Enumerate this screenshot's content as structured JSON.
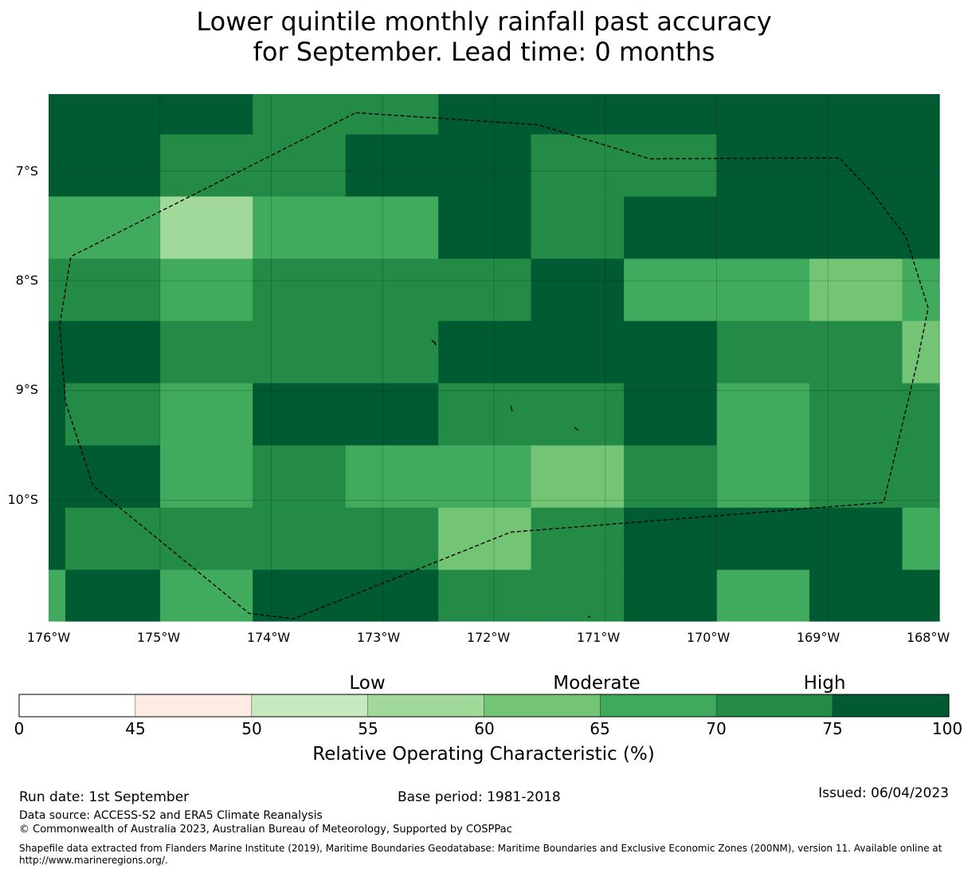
{
  "title": {
    "line1": "Lower quintile monthly rainfall past accuracy",
    "line2": "for September. Lead time: 0 months"
  },
  "map": {
    "lon_labels": [
      "176°W",
      "175°W",
      "174°W",
      "173°W",
      "172°W",
      "171°W",
      "170°W",
      "169°W",
      "168°W"
    ],
    "lat_labels": [
      "7°S",
      "8°S",
      "9°S",
      "10°S"
    ],
    "lon_range": [
      -176,
      -168
    ],
    "lat_range": [
      -6.3,
      -11.1
    ],
    "lon_edges": [
      -176,
      -175.85,
      -175,
      -174.167,
      -173.333,
      -172.5,
      -171.667,
      -170.833,
      -170,
      -169.167,
      -168.333,
      -168
    ],
    "lat_edges": [
      -6.3,
      -6.667,
      -7.233,
      -7.8,
      -8.367,
      -8.933,
      -9.5,
      -10.067,
      -10.633,
      -11.1
    ],
    "roc_values": [
      [
        80,
        80,
        80,
        72,
        72,
        80,
        80,
        80,
        80,
        80,
        80
      ],
      [
        80,
        80,
        72,
        72,
        80,
        80,
        72,
        72,
        80,
        80,
        80
      ],
      [
        67,
        67,
        57,
        67,
        67,
        80,
        72,
        80,
        80,
        80,
        80
      ],
      [
        72,
        72,
        67,
        72,
        72,
        72,
        80,
        67,
        67,
        62,
        67
      ],
      [
        80,
        80,
        72,
        72,
        72,
        80,
        80,
        80,
        72,
        72,
        62
      ],
      [
        80,
        72,
        67,
        80,
        80,
        72,
        72,
        80,
        67,
        72,
        72
      ],
      [
        80,
        80,
        67,
        72,
        67,
        67,
        62,
        72,
        67,
        72,
        72
      ],
      [
        80,
        72,
        72,
        72,
        72,
        62,
        72,
        80,
        80,
        80,
        67
      ],
      [
        67,
        80,
        67,
        80,
        80,
        72,
        72,
        80,
        67,
        80,
        80
      ]
    ],
    "eez_boundary": [
      [
        -173.24,
        -6.47
      ],
      [
        -171.6,
        -6.58
      ],
      [
        -170.6,
        -6.89
      ],
      [
        -168.9,
        -6.88
      ],
      [
        -168.6,
        -7.2
      ],
      [
        -168.3,
        -7.6
      ],
      [
        -168.1,
        -8.25
      ],
      [
        -168.2,
        -8.75
      ],
      [
        -168.5,
        -10.02
      ],
      [
        -171.85,
        -10.29
      ],
      [
        -173.8,
        -11.08
      ],
      [
        -174.2,
        -11.03
      ],
      [
        -175.6,
        -9.87
      ],
      [
        -175.85,
        -9.1
      ],
      [
        -175.9,
        -8.4
      ],
      [
        -175.8,
        -7.78
      ]
    ]
  },
  "colorbar": {
    "bounds": [
      0,
      45,
      50,
      55,
      60,
      65,
      70,
      75,
      100
    ],
    "tick_labels": [
      "0",
      "45",
      "50",
      "55",
      "60",
      "65",
      "70",
      "75",
      "100"
    ],
    "colors": [
      "#ffffff",
      "#feebe2",
      "#c7e9c0",
      "#a1d99b",
      "#74c476",
      "#41ab5d",
      "#238b45",
      "#005a32"
    ],
    "categories": [
      "Low",
      "Moderate",
      "High"
    ],
    "title": "Relative Operating Characteristic (%)"
  },
  "footer": {
    "run_date": "Run date: 1st September",
    "base_period": "Base period: 1981-2018",
    "issued": "Issued: 06/04/2023",
    "data_source": "Data source: ACCESS-S2 and ERA5 Climate Reanalysis",
    "copyright": "© Commonwealth of Australia 2023, Australian Bureau of Meteorology, Supported by COSPPac",
    "shapefile": "Shapefile data extracted from Flanders Marine Institute (2019), Maritime Boundaries Geodatabase: Maritime Boundaries and Exclusive Economic Zones (200NM), version 11. Available online at http://www.marineregions.org/."
  }
}
